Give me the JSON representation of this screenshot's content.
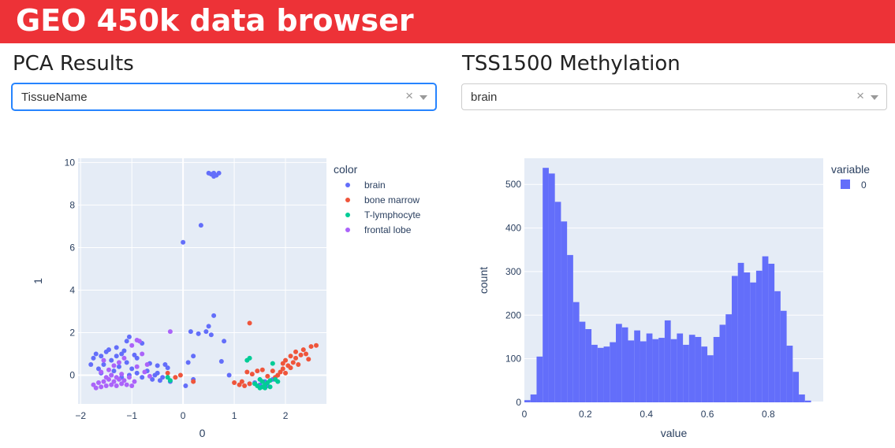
{
  "header": {
    "title": "GEO 450k data browser",
    "color": "#ed3237"
  },
  "left_panel": {
    "title": "PCA Results",
    "dropdown": {
      "value": "TissueName",
      "clear_icon": "×"
    }
  },
  "right_panel": {
    "title": "TSS1500 Methylation",
    "dropdown": {
      "value": "brain",
      "clear_icon": "×"
    }
  },
  "chart_data": [
    {
      "type": "scatter",
      "xlabel": "0",
      "ylabel": "1",
      "xlim": [
        -2.05,
        2.8
      ],
      "ylim": [
        -1.35,
        10.2
      ],
      "xticks": [
        -2,
        -1,
        0,
        1,
        2
      ],
      "yticks": [
        0,
        2,
        4,
        6,
        8,
        10
      ],
      "xtick_labels": [
        "−2",
        "−1",
        "0",
        "1",
        "2"
      ],
      "ytick_labels": [
        "0",
        "2",
        "4",
        "6",
        "8",
        "10"
      ],
      "legend": {
        "title": "color",
        "placement": "right"
      },
      "series": [
        {
          "name": "brain",
          "color": "#636efa",
          "points": [
            [
              0.5,
              9.5
            ],
            [
              0.55,
              9.45
            ],
            [
              0.6,
              9.5
            ],
            [
              0.65,
              9.4
            ],
            [
              0.7,
              9.5
            ],
            [
              0.6,
              9.35
            ],
            [
              0.35,
              7.05
            ],
            [
              0.0,
              6.25
            ],
            [
              0.6,
              2.8
            ],
            [
              0.5,
              2.3
            ],
            [
              0.45,
              2.05
            ],
            [
              0.3,
              1.95
            ],
            [
              0.15,
              2.05
            ],
            [
              0.55,
              1.9
            ],
            [
              0.8,
              1.6
            ],
            [
              0.2,
              0.9
            ],
            [
              0.1,
              0.6
            ],
            [
              0.2,
              -0.2
            ],
            [
              0.05,
              -0.5
            ],
            [
              0.75,
              0.65
            ],
            [
              0.9,
              0.0
            ],
            [
              -0.3,
              0.35
            ],
            [
              -0.5,
              0.1
            ],
            [
              -1.05,
              1.8
            ],
            [
              -1.1,
              1.6
            ],
            [
              -0.8,
              1.5
            ],
            [
              -0.9,
              0.8
            ],
            [
              -1.5,
              1.1
            ],
            [
              -1.6,
              0.9
            ],
            [
              -1.7,
              1.0
            ],
            [
              -1.3,
              1.3
            ],
            [
              -1.2,
              1.0
            ],
            [
              -1.4,
              0.7
            ],
            [
              -1.55,
              0.5
            ],
            [
              -1.65,
              0.3
            ],
            [
              -1.35,
              0.2
            ],
            [
              -1.25,
              0.4
            ],
            [
              -1.1,
              0.6
            ],
            [
              -1.0,
              0.3
            ],
            [
              -0.9,
              0.1
            ],
            [
              -0.8,
              -0.1
            ],
            [
              -0.7,
              0.2
            ],
            [
              -0.6,
              -0.2
            ],
            [
              -0.55,
              0.0
            ],
            [
              -0.4,
              -0.1
            ],
            [
              -0.35,
              0.5
            ],
            [
              -0.25,
              -0.3
            ],
            [
              -1.75,
              0.8
            ],
            [
              -1.8,
              0.5
            ],
            [
              -1.45,
              1.2
            ],
            [
              -1.15,
              1.15
            ],
            [
              -0.95,
              0.95
            ],
            [
              -1.05,
              0.0
            ],
            [
              -1.2,
              -0.1
            ],
            [
              -1.4,
              0.0
            ],
            [
              -0.65,
              0.55
            ],
            [
              -0.5,
              0.45
            ],
            [
              -0.45,
              -0.25
            ],
            [
              -1.3,
              0.9
            ],
            [
              -1.6,
              0.1
            ],
            [
              1.4,
              -0.35
            ],
            [
              1.6,
              -0.3
            ],
            [
              1.75,
              -0.2
            ],
            [
              1.5,
              -0.45
            ],
            [
              1.65,
              -0.5
            ],
            [
              1.3,
              -0.4
            ]
          ]
        },
        {
          "name": "bone marrow",
          "color": "#ef553b",
          "points": [
            [
              1.3,
              2.45
            ],
            [
              2.0,
              0.7
            ],
            [
              2.1,
              0.9
            ],
            [
              2.2,
              1.1
            ],
            [
              2.35,
              1.2
            ],
            [
              2.5,
              1.35
            ],
            [
              2.6,
              1.4
            ],
            [
              2.3,
              0.95
            ],
            [
              2.15,
              0.6
            ],
            [
              2.05,
              0.45
            ],
            [
              1.95,
              0.3
            ],
            [
              1.9,
              0.15
            ],
            [
              1.85,
              0.0
            ],
            [
              1.8,
              -0.1
            ],
            [
              1.75,
              0.2
            ],
            [
              2.2,
              0.8
            ],
            [
              2.25,
              0.5
            ],
            [
              2.4,
              1.0
            ],
            [
              2.45,
              0.75
            ],
            [
              1.15,
              -0.3
            ],
            [
              1.0,
              -0.35
            ],
            [
              1.1,
              -0.45
            ],
            [
              1.2,
              -0.5
            ],
            [
              1.3,
              -0.4
            ],
            [
              1.45,
              0.2
            ],
            [
              1.55,
              0.25
            ],
            [
              1.25,
              0.15
            ],
            [
              1.35,
              0.05
            ],
            [
              -0.15,
              -0.1
            ],
            [
              -0.05,
              0.0
            ],
            [
              0.2,
              -0.3
            ],
            [
              -0.3,
              0.1
            ],
            [
              1.65,
              -0.05
            ],
            [
              2.0,
              0.1
            ],
            [
              1.95,
              0.55
            ],
            [
              2.1,
              0.35
            ]
          ]
        },
        {
          "name": "T-lymphocyte",
          "color": "#00cc96",
          "points": [
            [
              1.25,
              0.7
            ],
            [
              1.3,
              0.8
            ],
            [
              1.75,
              0.55
            ],
            [
              1.5,
              -0.6
            ],
            [
              1.55,
              -0.55
            ],
            [
              1.6,
              -0.45
            ],
            [
              1.65,
              -0.35
            ],
            [
              1.7,
              -0.25
            ],
            [
              1.8,
              -0.2
            ],
            [
              1.45,
              -0.5
            ],
            [
              1.4,
              -0.4
            ],
            [
              1.55,
              -0.3
            ],
            [
              1.6,
              -0.6
            ],
            [
              1.7,
              -0.55
            ],
            [
              -0.3,
              -0.1
            ],
            [
              -0.25,
              -0.25
            ],
            [
              1.85,
              -0.3
            ],
            [
              1.5,
              -0.2
            ]
          ]
        },
        {
          "name": "frontal lobe",
          "color": "#ab63fa",
          "points": [
            [
              -0.25,
              2.05
            ],
            [
              -0.85,
              1.6
            ],
            [
              -0.9,
              1.65
            ],
            [
              -1.0,
              1.4
            ],
            [
              -0.8,
              1.0
            ],
            [
              -1.5,
              -0.5
            ],
            [
              -1.6,
              -0.55
            ],
            [
              -1.7,
              -0.6
            ],
            [
              -1.4,
              -0.45
            ],
            [
              -1.3,
              -0.5
            ],
            [
              -1.2,
              -0.4
            ],
            [
              -1.1,
              -0.45
            ],
            [
              -1.0,
              -0.5
            ],
            [
              -1.55,
              -0.3
            ],
            [
              -1.45,
              -0.2
            ],
            [
              -1.35,
              -0.3
            ],
            [
              -1.25,
              -0.2
            ],
            [
              -1.15,
              -0.25
            ],
            [
              -1.65,
              -0.35
            ],
            [
              -1.75,
              -0.45
            ],
            [
              -1.5,
              -0.1
            ],
            [
              -1.4,
              0.0
            ],
            [
              -1.3,
              -0.1
            ],
            [
              -1.2,
              0.05
            ],
            [
              -1.05,
              -0.1
            ],
            [
              -0.95,
              -0.3
            ],
            [
              -1.6,
              0.15
            ],
            [
              -1.45,
              0.25
            ],
            [
              -0.9,
              0.4
            ],
            [
              -0.7,
              0.5
            ],
            [
              -0.75,
              0.15
            ],
            [
              -1.25,
              0.6
            ],
            [
              -1.35,
              0.45
            ],
            [
              -1.55,
              0.7
            ],
            [
              -1.15,
              0.8
            ],
            [
              -0.65,
              -0.05
            ]
          ]
        }
      ]
    },
    {
      "type": "bar",
      "subtype": "histogram",
      "xlabel": "value",
      "ylabel": "count",
      "xlim": [
        0,
        0.98
      ],
      "ylim": [
        0,
        560
      ],
      "xticks": [
        0,
        0.2,
        0.4,
        0.6,
        0.8
      ],
      "yticks": [
        0,
        100,
        200,
        300,
        400,
        500
      ],
      "legend": {
        "title": "variable",
        "placement": "top-right"
      },
      "series": [
        {
          "name": "0",
          "color": "#636efa",
          "bin_width": 0.02,
          "bin_start": 0,
          "values": [
            5,
            18,
            105,
            538,
            525,
            460,
            415,
            338,
            230,
            185,
            168,
            132,
            125,
            128,
            138,
            180,
            172,
            142,
            165,
            140,
            158,
            145,
            148,
            188,
            145,
            158,
            132,
            155,
            150,
            128,
            108,
            150,
            178,
            202,
            290,
            320,
            298,
            275,
            302,
            335,
            318,
            255,
            210,
            130,
            70,
            18,
            4
          ]
        }
      ]
    }
  ]
}
